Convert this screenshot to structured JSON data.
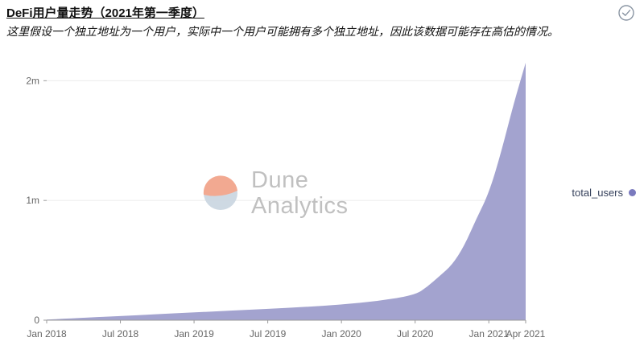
{
  "page": {
    "title": "DeFi用户量走势（2021年第一季度）",
    "subtitle": "这里假设一个独立地址为一个用户，实际中一个用户可能拥有多个独立地址，因此该数据可能存在高估的情况。"
  },
  "legend": {
    "label": "total_users",
    "dot_color": "#7a7abe"
  },
  "watermark": {
    "line1": "Dune",
    "line2": "Analytics",
    "logo_top_color": "#f2a58c",
    "logo_bottom_color": "#ccd7e2"
  },
  "icons": {
    "check_circle": "check-circle"
  },
  "chart_data": {
    "type": "area",
    "title": "DeFi用户量走势（2021年第一季度）",
    "series_name": "total_users",
    "fill_color": "#a3a3cf",
    "axis_color": "#9a9a9a",
    "grid_color": "#ebebeb",
    "ylim": [
      0,
      2150000
    ],
    "grid": true,
    "legend_position": "right",
    "yticks": [
      {
        "value": 0,
        "label": "0"
      },
      {
        "value": 1000000,
        "label": "1m"
      },
      {
        "value": 2000000,
        "label": "2m"
      }
    ],
    "xticks": [
      {
        "month": "2018-01",
        "label": "Jan 2018"
      },
      {
        "month": "2018-07",
        "label": "Jul 2018"
      },
      {
        "month": "2019-01",
        "label": "Jan 2019"
      },
      {
        "month": "2019-07",
        "label": "Jul 2019"
      },
      {
        "month": "2020-01",
        "label": "Jan 2020"
      },
      {
        "month": "2020-07",
        "label": "Jul 2020"
      },
      {
        "month": "2021-01",
        "label": "Jan 2021"
      },
      {
        "month": "2021-04",
        "label": "Apr 2021"
      }
    ],
    "points": [
      {
        "month": "2018-01",
        "value": 5000
      },
      {
        "month": "2018-04",
        "value": 20000
      },
      {
        "month": "2018-07",
        "value": 35000
      },
      {
        "month": "2018-10",
        "value": 50000
      },
      {
        "month": "2019-01",
        "value": 65000
      },
      {
        "month": "2019-04",
        "value": 80000
      },
      {
        "month": "2019-07",
        "value": 95000
      },
      {
        "month": "2019-10",
        "value": 110000
      },
      {
        "month": "2020-01",
        "value": 130000
      },
      {
        "month": "2020-04",
        "value": 160000
      },
      {
        "month": "2020-07",
        "value": 210000
      },
      {
        "month": "2020-08",
        "value": 280000
      },
      {
        "month": "2020-09",
        "value": 370000
      },
      {
        "month": "2020-10",
        "value": 460000
      },
      {
        "month": "2020-11",
        "value": 620000
      },
      {
        "month": "2020-12",
        "value": 850000
      },
      {
        "month": "2021-01",
        "value": 1060000
      },
      {
        "month": "2021-02",
        "value": 1400000
      },
      {
        "month": "2021-03",
        "value": 1800000
      },
      {
        "month": "2021-04",
        "value": 2150000
      }
    ]
  }
}
